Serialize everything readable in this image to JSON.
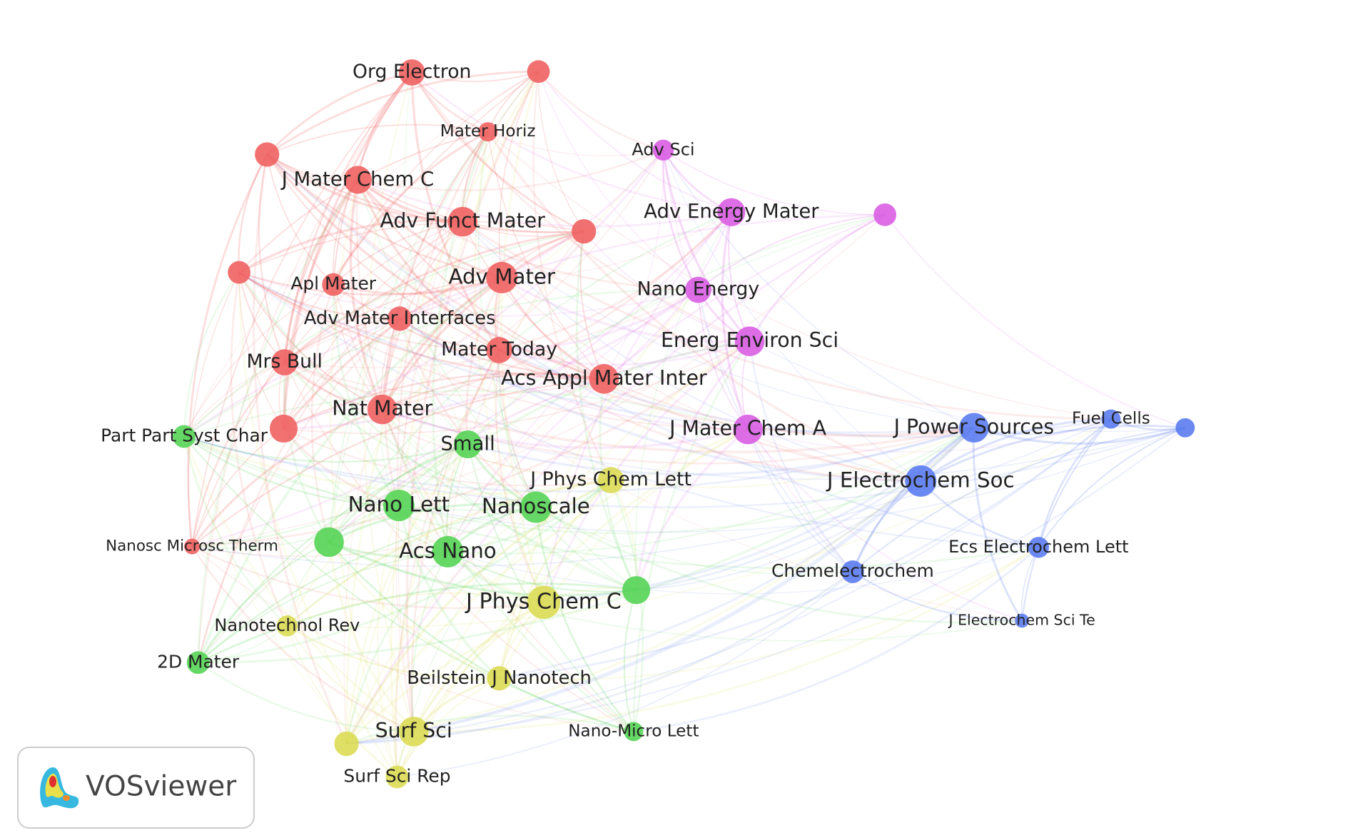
{
  "clusters": {
    "red": "#f06262",
    "magenta": "#d95ee3",
    "green": "#55d455",
    "yellow": "#dcdc55",
    "blue": "#5b7cef"
  },
  "nodes": [
    {
      "label": "Org Electron",
      "cluster": "red"
    },
    {
      "cluster": "red"
    },
    {
      "label": "Mater Horiz",
      "cluster": "red"
    },
    {
      "cluster": "red"
    },
    {
      "label": "J Mater Chem C",
      "cluster": "red"
    },
    {
      "label": "Adv Funct Mater",
      "cluster": "red"
    },
    {
      "cluster": "red"
    },
    {
      "cluster": "red"
    },
    {
      "label": "Apl Mater",
      "cluster": "red"
    },
    {
      "label": "Adv Mater",
      "cluster": "red"
    },
    {
      "label": "Adv Mater Interfaces",
      "cluster": "red"
    },
    {
      "label": "Mater Today",
      "cluster": "red"
    },
    {
      "label": "Mrs Bull",
      "cluster": "red"
    },
    {
      "label": "Acs Appl Mater Inter",
      "cluster": "red"
    },
    {
      "label": "Nat Mater",
      "cluster": "red"
    },
    {
      "cluster": "red"
    },
    {
      "label": "Nanosc Microsc Therm",
      "cluster": "red"
    },
    {
      "label": "Adv Sci",
      "cluster": "magenta"
    },
    {
      "label": "Adv Energy Mater",
      "cluster": "magenta"
    },
    {
      "cluster": "magenta"
    },
    {
      "label": "Nano Energy",
      "cluster": "magenta"
    },
    {
      "label": "Energ Environ Sci",
      "cluster": "magenta"
    },
    {
      "label": "J Mater Chem A",
      "cluster": "magenta"
    },
    {
      "label": "Part Part Syst Char",
      "cluster": "green"
    },
    {
      "label": "Small",
      "cluster": "green"
    },
    {
      "label": "Nano Lett",
      "cluster": "green"
    },
    {
      "label": "Nanoscale",
      "cluster": "green"
    },
    {
      "cluster": "green"
    },
    {
      "label": "Acs Nano",
      "cluster": "green"
    },
    {
      "cluster": "green"
    },
    {
      "label": "2D Mater",
      "cluster": "green"
    },
    {
      "label": "Nano-Micro Lett",
      "cluster": "green"
    },
    {
      "label": "J Phys Chem Lett",
      "cluster": "yellow"
    },
    {
      "label": "J Phys Chem C",
      "cluster": "yellow"
    },
    {
      "label": "Nanotechnol Rev",
      "cluster": "yellow"
    },
    {
      "label": "Beilstein J Nanotech",
      "cluster": "yellow"
    },
    {
      "label": "Surf Sci",
      "cluster": "yellow"
    },
    {
      "cluster": "yellow"
    },
    {
      "label": "Surf Sci Rep",
      "cluster": "yellow"
    },
    {
      "label": "J Power Sources",
      "cluster": "blue"
    },
    {
      "label": "Fuel Cells",
      "cluster": "blue"
    },
    {
      "cluster": "blue"
    },
    {
      "label": "J Electrochem Soc",
      "cluster": "blue"
    },
    {
      "label": "Ecs Electrochem Lett",
      "cluster": "blue"
    },
    {
      "label": "Chemelectrochem",
      "cluster": "blue"
    },
    {
      "label": "J Electrochem Sci Te",
      "cluster": "blue"
    }
  ],
  "logo": {
    "text": "VOSviewer"
  }
}
